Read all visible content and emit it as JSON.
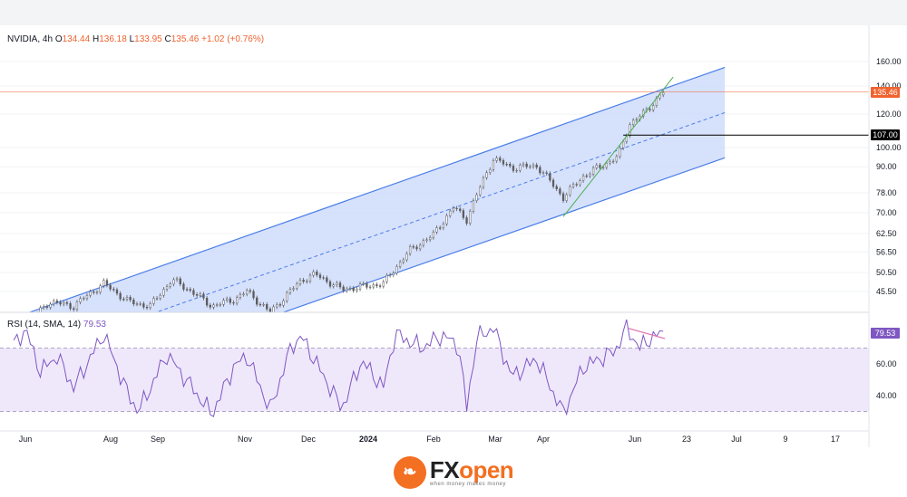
{
  "legend": {
    "symbol": "NVIDIA, 4h",
    "open_label": "O",
    "open": "134.44",
    "high_label": "H",
    "high": "136.18",
    "low_label": "L",
    "low": "133.95",
    "close_label": "C",
    "close": "135.46",
    "change": "+1.02 (+0.76%)"
  },
  "rsi_legend": {
    "label": "RSI (14, SMA, 14)",
    "value": "79.53"
  },
  "badges": {
    "price": "135.46",
    "level": "107.00",
    "rsi": "79.53"
  },
  "colors": {
    "channel_fill": "#cfdcfb",
    "channel_line": "#4a7ee8",
    "candle_up": "#5b5b5b",
    "candle_down": "#5b5b5b",
    "rsi_line": "#7e57c2",
    "rsi_band": "#efe8fb",
    "current_price": "#f0632f",
    "level_line": "#000000",
    "trend_line": "#4caf50",
    "divergence": "#e07bb4"
  },
  "footer": {
    "brand_fx": "FX",
    "brand_open": "open",
    "tagline": "when money makes money",
    "icon": "fxopen-logo-icon"
  },
  "chart_data": [
    {
      "type": "candlestick",
      "title": "NVIDIA, 4h",
      "ylim": [
        40,
        160
      ],
      "y_scale": "log",
      "y_ticks": [
        "160.00",
        "140.00",
        "120.00",
        "100.00",
        "90.00",
        "78.00",
        "70.00",
        "62.50",
        "56.50",
        "50.50",
        "45.50"
      ],
      "x_ticks": [
        "Jun",
        "Aug",
        "Sep",
        "Nov",
        "Dec",
        "2024",
        "Feb",
        "Mar",
        "Apr",
        "Jun",
        "23",
        "Jul",
        "9",
        "17"
      ],
      "price_path": [
        [
          "2023-05-25",
          38.5
        ],
        [
          "2023-06-05",
          39
        ],
        [
          "2023-06-15",
          43
        ],
        [
          "2023-06-30",
          42
        ],
        [
          "2023-07-18",
          47.5
        ],
        [
          "2023-08-02",
          43
        ],
        [
          "2023-08-15",
          42
        ],
        [
          "2023-08-28",
          48.5
        ],
        [
          "2023-09-07",
          46
        ],
        [
          "2023-09-21",
          42
        ],
        [
          "2023-10-04",
          43.5
        ],
        [
          "2023-10-12",
          45.5
        ],
        [
          "2023-10-26",
          40.5
        ],
        [
          "2023-11-14",
          48.5
        ],
        [
          "2023-11-22",
          50
        ],
        [
          "2023-12-08",
          46
        ],
        [
          "2024-01-02",
          47.5
        ],
        [
          "2024-01-18",
          57
        ],
        [
          "2024-02-01",
          62
        ],
        [
          "2024-02-13",
          72
        ],
        [
          "2024-02-21",
          67.5
        ],
        [
          "2024-03-01",
          82
        ],
        [
          "2024-03-08",
          94
        ],
        [
          "2024-03-19",
          89.5
        ],
        [
          "2024-04-03",
          90.5
        ],
        [
          "2024-04-19",
          76
        ],
        [
          "2024-05-01",
          85.5
        ],
        [
          "2024-05-22",
          95
        ],
        [
          "2024-05-29",
          114
        ],
        [
          "2024-06-07",
          121
        ],
        [
          "2024-06-18",
          135.5
        ]
      ],
      "channel": {
        "upper": [
          [
            "2023-05-22",
            39
          ],
          [
            "2024-07-25",
            155
          ]
        ],
        "middle": [
          [
            "2023-05-22",
            30.6
          ],
          [
            "2024-07-25",
            121
          ]
        ],
        "lower": [
          [
            "2023-05-22",
            24
          ],
          [
            "2024-07-25",
            94.5
          ]
        ]
      },
      "trend_line": [
        [
          "2024-04-19",
          68.5
        ],
        [
          "2024-06-24",
          147
        ]
      ],
      "horizontal_levels": [
        107,
        135.46
      ],
      "last_price": 135.46
    },
    {
      "type": "line",
      "title": "RSI (14, SMA, 14)",
      "ylim": [
        20,
        90
      ],
      "y_ticks": [
        "60.00",
        "40.00"
      ],
      "bands": [
        70,
        30
      ],
      "rsi_path": [
        [
          "2023-05-25",
          72
        ],
        [
          "2023-06-01",
          82
        ],
        [
          "2023-06-10",
          55
        ],
        [
          "2023-06-20",
          65
        ],
        [
          "2023-06-30",
          45
        ],
        [
          "2023-07-18",
          79
        ],
        [
          "2023-08-02",
          40
        ],
        [
          "2023-08-08",
          30
        ],
        [
          "2023-08-25",
          66
        ],
        [
          "2023-09-07",
          48
        ],
        [
          "2023-09-21",
          28
        ],
        [
          "2023-10-04",
          58
        ],
        [
          "2023-10-12",
          65
        ],
        [
          "2023-10-26",
          31
        ],
        [
          "2023-11-08",
          72
        ],
        [
          "2023-11-14",
          77
        ],
        [
          "2023-11-25",
          56
        ],
        [
          "2023-12-08",
          32
        ],
        [
          "2023-12-20",
          62
        ],
        [
          "2024-01-02",
          45
        ],
        [
          "2024-01-09",
          79
        ],
        [
          "2024-01-25",
          70
        ],
        [
          "2024-02-06",
          78
        ],
        [
          "2024-02-16",
          72
        ],
        [
          "2024-02-21",
          32
        ],
        [
          "2024-02-27",
          76
        ],
        [
          "2024-03-08",
          83
        ],
        [
          "2024-03-19",
          52
        ],
        [
          "2024-04-03",
          63
        ],
        [
          "2024-04-12",
          44
        ],
        [
          "2024-04-19",
          29
        ],
        [
          "2024-05-01",
          58
        ],
        [
          "2024-05-20",
          68
        ],
        [
          "2024-05-27",
          83
        ],
        [
          "2024-06-04",
          70
        ],
        [
          "2024-06-10",
          76
        ],
        [
          "2024-06-18",
          79.53
        ]
      ],
      "divergence": [
        [
          "2024-05-28",
          82.5
        ],
        [
          "2024-06-19",
          76
        ]
      ],
      "last_value": 79.53
    }
  ]
}
